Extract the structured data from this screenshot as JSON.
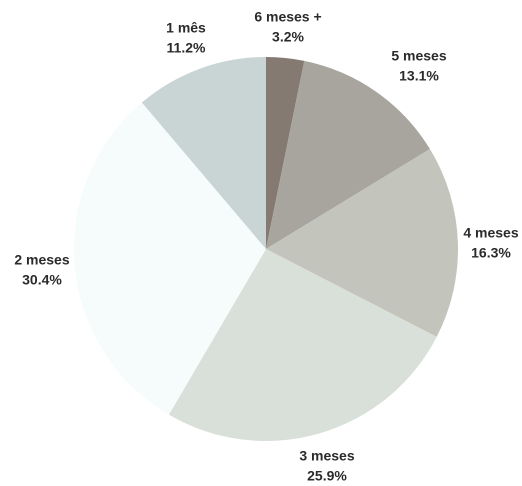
{
  "chart_data": {
    "type": "pie",
    "title": "",
    "start_angle_deg": 0,
    "direction": "clockwise",
    "slices": [
      {
        "label": "6 meses +",
        "value": 3.2,
        "value_label": "3.2%",
        "color": "#857a72"
      },
      {
        "label": "5 meses",
        "value": 13.1,
        "value_label": "13.1%",
        "color": "#a8a59e"
      },
      {
        "label": "4 meses",
        "value": 16.3,
        "value_label": "16.3%",
        "color": "#c3c5bd"
      },
      {
        "label": "3 meses",
        "value": 25.9,
        "value_label": "25.9%",
        "color": "#d9e0d9"
      },
      {
        "label": "2 meses",
        "value": 30.4,
        "value_label": "30.4%",
        "color": "#f6fbfb"
      },
      {
        "label": "1 mês",
        "value": 11.2,
        "value_label": "11.2%",
        "color": "#c9d4d5"
      }
    ]
  }
}
